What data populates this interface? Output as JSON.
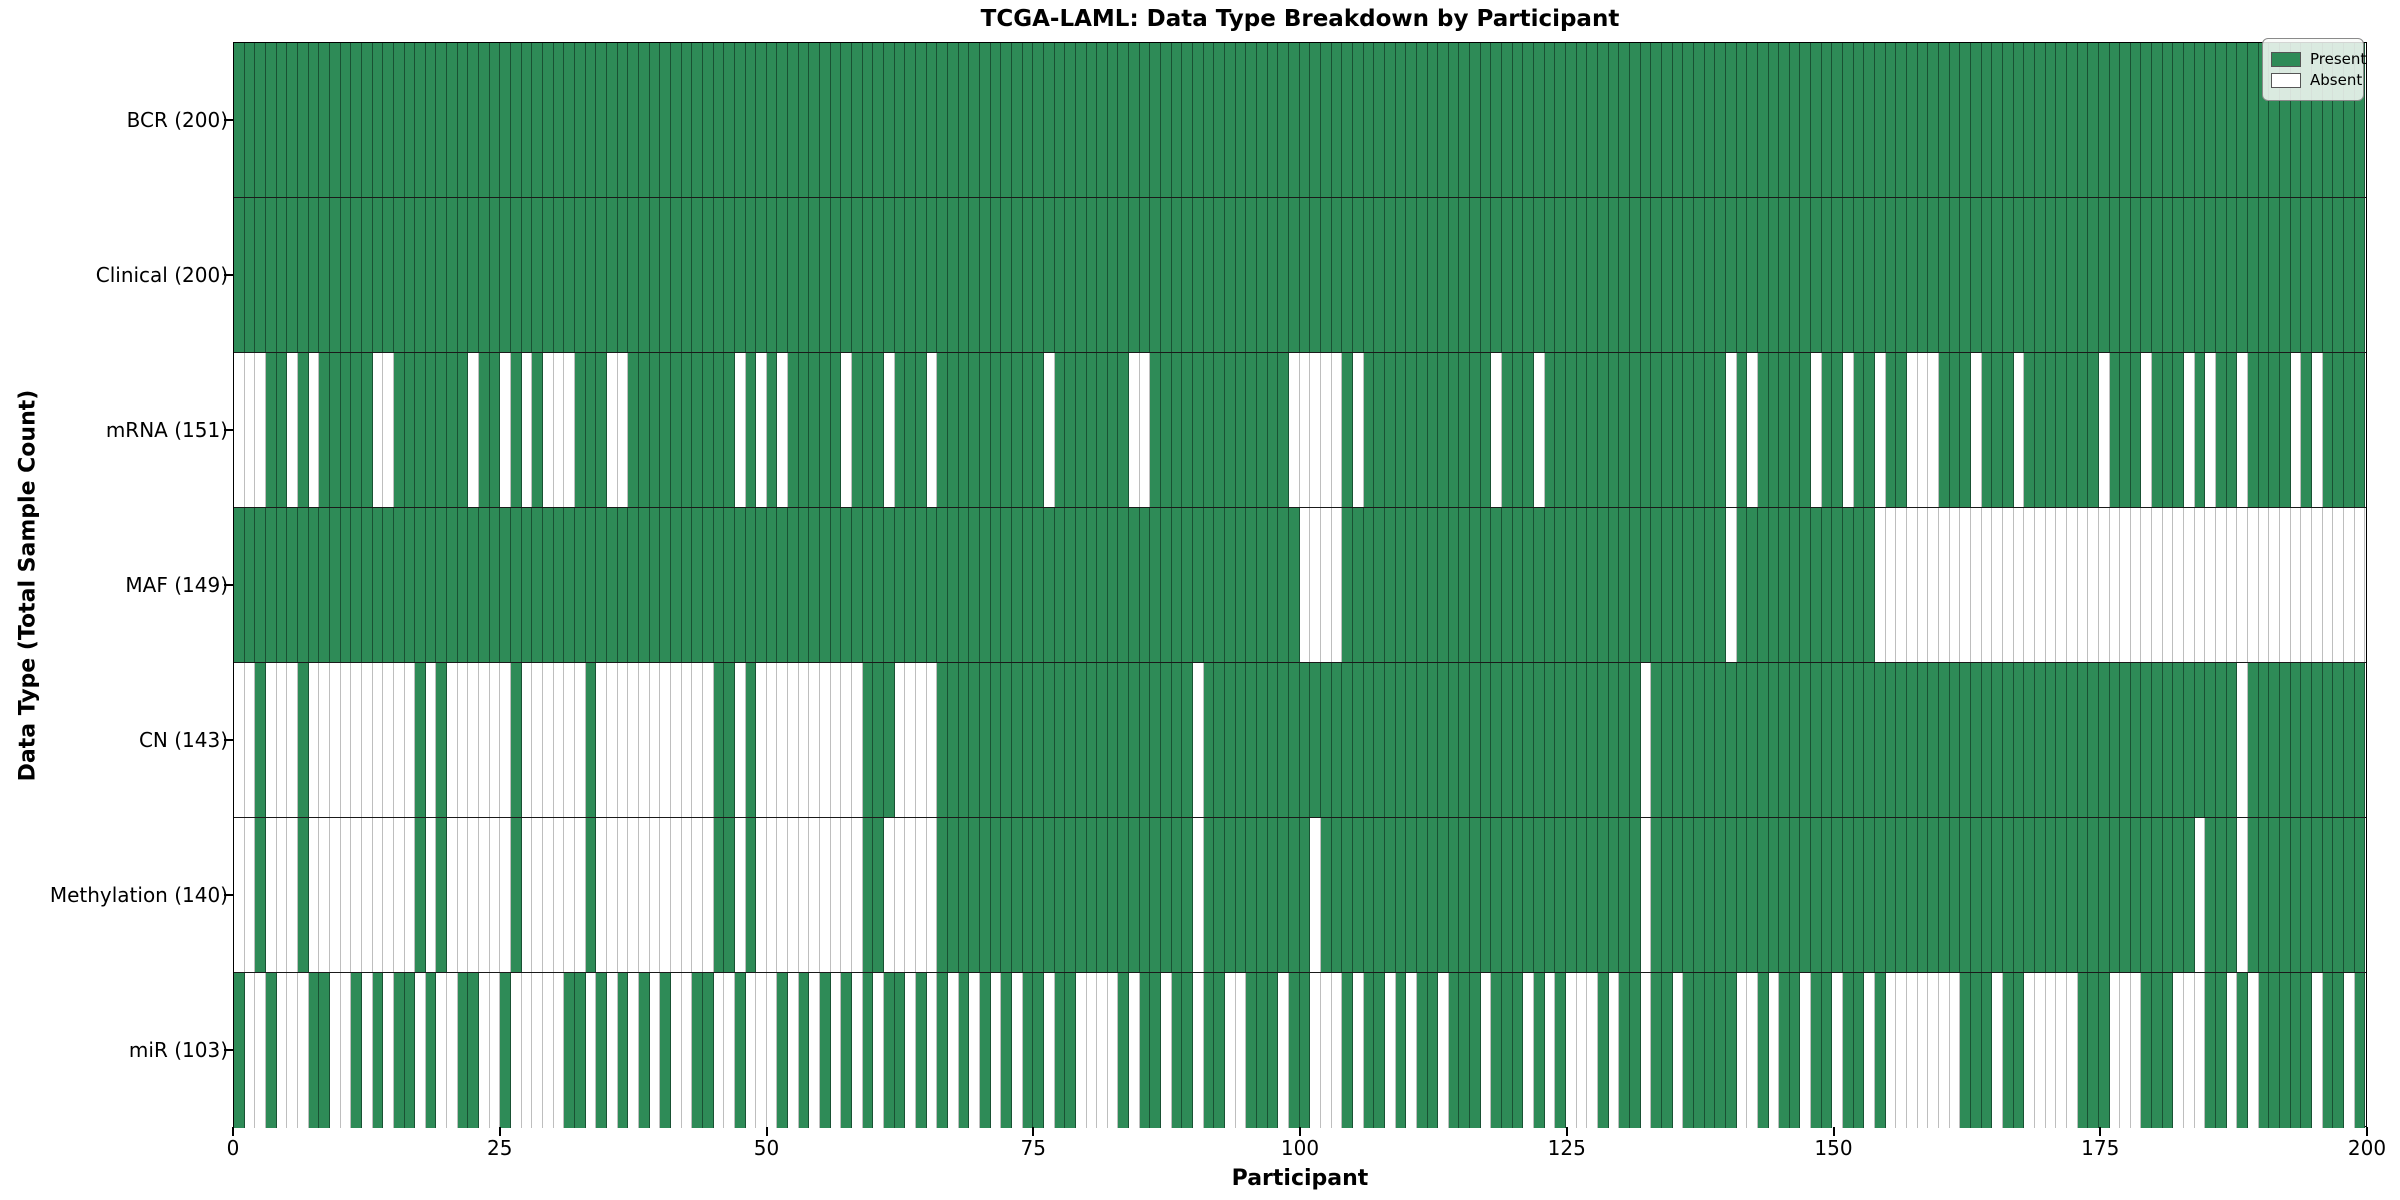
{
  "chart_data": {
    "type": "heatmap",
    "title": "TCGA-LAML: Data Type Breakdown by Participant",
    "xlabel": "Participant",
    "ylabel": "Data Type (Total Sample Count)",
    "n_participants": 200,
    "x_ticks": [
      0,
      25,
      50,
      75,
      100,
      125,
      150,
      175,
      200
    ],
    "grid": "column gridlines visible, black row separators",
    "legend_position": "upper right inside plot",
    "legend": {
      "present_label": "Present",
      "absent_label": "Absent",
      "present_color": "#2e8b57",
      "absent_color": "#ffffff"
    },
    "rows": [
      {
        "label": "BCR (200)",
        "data_type": "BCR",
        "total_sample_count": 200,
        "absent_participants": []
      },
      {
        "label": "Clinical (200)",
        "data_type": "Clinical",
        "total_sample_count": 200,
        "absent_participants": []
      },
      {
        "label": "mRNA (151)",
        "data_type": "mRNA",
        "total_sample_count": 151,
        "absent_participants": [
          0,
          1,
          2,
          5,
          7,
          13,
          14,
          22,
          25,
          27,
          29,
          30,
          31,
          35,
          36,
          47,
          49,
          51,
          57,
          61,
          65,
          76,
          84,
          85,
          99,
          100,
          101,
          102,
          103,
          105,
          118,
          122,
          140,
          142,
          148,
          151,
          154,
          157,
          158,
          159,
          163,
          167,
          175,
          179,
          183,
          185,
          188,
          193,
          195
        ]
      },
      {
        "label": "MAF (149)",
        "data_type": "MAF",
        "total_sample_count": 149,
        "absent_participants": [
          100,
          101,
          102,
          103,
          140,
          154,
          155,
          156,
          157,
          158,
          159,
          160,
          161,
          162,
          163,
          164,
          165,
          166,
          167,
          168,
          169,
          170,
          171,
          172,
          173,
          174,
          175,
          176,
          177,
          178,
          179,
          180,
          181,
          182,
          183,
          184,
          185,
          186,
          187,
          188,
          189,
          190,
          191,
          192,
          193,
          194,
          195,
          196,
          197,
          198,
          199
        ]
      },
      {
        "label": "CN (143)",
        "data_type": "CN",
        "total_sample_count": 143,
        "absent_participants": [
          0,
          1,
          3,
          4,
          5,
          7,
          8,
          9,
          10,
          11,
          12,
          13,
          14,
          15,
          16,
          18,
          20,
          21,
          22,
          23,
          24,
          25,
          27,
          28,
          29,
          30,
          31,
          32,
          34,
          35,
          36,
          37,
          38,
          39,
          40,
          41,
          42,
          43,
          44,
          47,
          49,
          50,
          51,
          52,
          53,
          54,
          55,
          56,
          57,
          58,
          62,
          63,
          64,
          65,
          90,
          132,
          188
        ]
      },
      {
        "label": "Methylation (140)",
        "data_type": "Methylation",
        "total_sample_count": 140,
        "absent_participants": [
          0,
          1,
          3,
          4,
          5,
          7,
          8,
          9,
          10,
          11,
          12,
          13,
          14,
          15,
          16,
          18,
          20,
          21,
          22,
          23,
          24,
          25,
          27,
          28,
          29,
          30,
          31,
          32,
          34,
          35,
          36,
          37,
          38,
          39,
          40,
          41,
          42,
          43,
          44,
          47,
          49,
          50,
          51,
          52,
          53,
          54,
          55,
          56,
          57,
          58,
          61,
          62,
          63,
          64,
          65,
          90,
          101,
          132,
          184,
          188
        ]
      },
      {
        "label": "miR (103)",
        "data_type": "miR",
        "total_sample_count": 103,
        "absent_participants": [
          1,
          2,
          4,
          5,
          6,
          9,
          10,
          12,
          14,
          17,
          19,
          20,
          23,
          24,
          26,
          27,
          28,
          29,
          30,
          33,
          35,
          37,
          39,
          41,
          42,
          45,
          46,
          48,
          49,
          50,
          52,
          54,
          56,
          58,
          60,
          63,
          65,
          67,
          69,
          71,
          73,
          76,
          79,
          80,
          81,
          82,
          84,
          87,
          90,
          93,
          94,
          98,
          101,
          102,
          103,
          105,
          108,
          110,
          113,
          117,
          121,
          123,
          125,
          126,
          127,
          129,
          132,
          135,
          141,
          142,
          144,
          147,
          150,
          153,
          155,
          156,
          157,
          158,
          159,
          160,
          161,
          165,
          168,
          169,
          170,
          171,
          172,
          176,
          177,
          178,
          182,
          183,
          184,
          187,
          189,
          195,
          198
        ]
      }
    ]
  },
  "colors": {
    "present": "#2e8b57",
    "absent": "#ffffff",
    "row_separator": "#1a1a1a",
    "spine": "#000000"
  }
}
